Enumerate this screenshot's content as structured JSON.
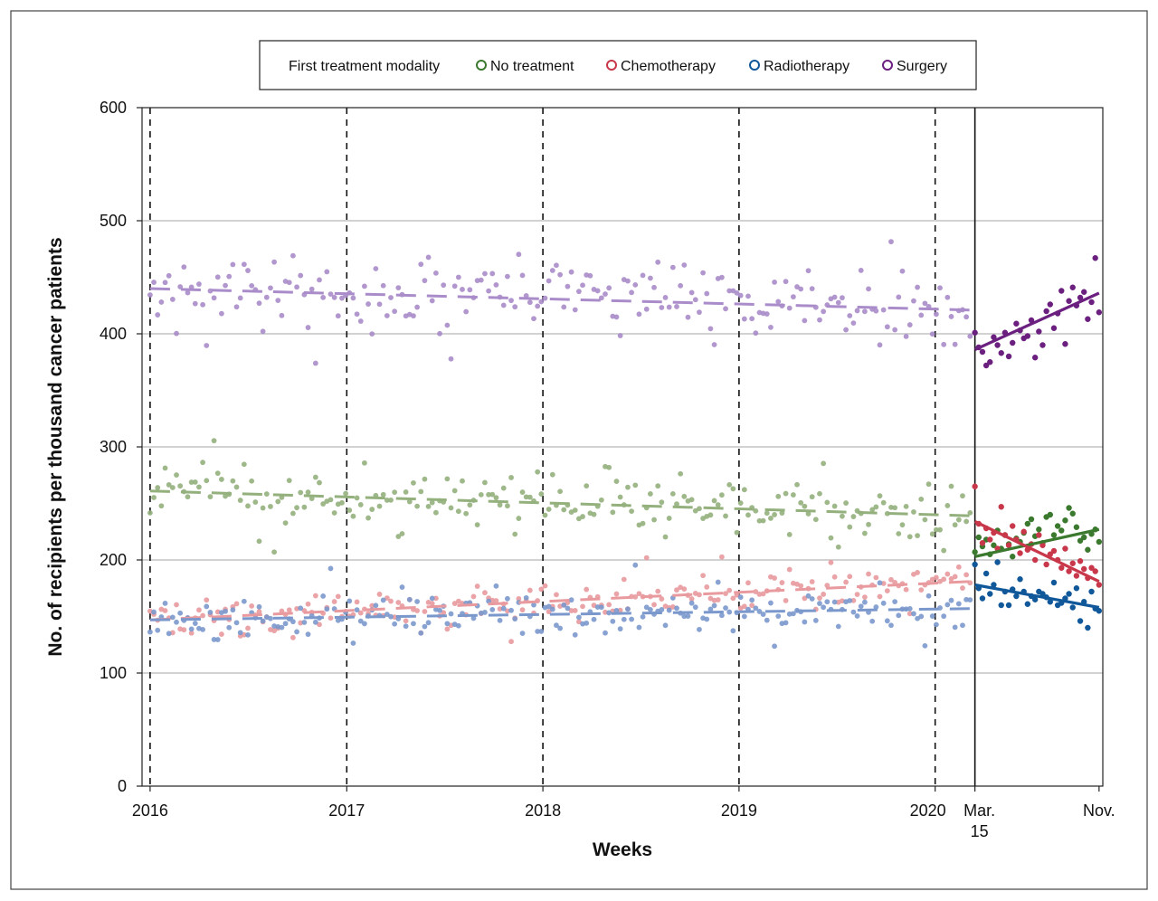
{
  "chart_data": {
    "type": "scatter",
    "title": "",
    "xlabel": "Weeks",
    "ylabel": "No. of recipients per thousand cancer patients",
    "ylim": [
      0,
      600
    ],
    "y_ticks": [
      "0",
      "100",
      "200",
      "300",
      "400",
      "500",
      "600"
    ],
    "x_tick_labels": [
      {
        "label": "2016",
        "x": "2016-01-01"
      },
      {
        "label": "2017",
        "x": "2017-01-01"
      },
      {
        "label": "2018",
        "x": "2018-01-01"
      },
      {
        "label": "2019",
        "x": "2019-01-01"
      },
      {
        "label": "2020",
        "x": "2020-01-01"
      },
      {
        "label": "Mar.",
        "label2": "15",
        "x": "2020-03-15"
      },
      {
        "label": "Nov.",
        "x": "2020-11-01"
      }
    ],
    "xlim": [
      "2015-12-17",
      "2020-11-08"
    ],
    "grid": "horizontal",
    "period_break": "2020-03-15",
    "year_markers": [
      "2016-01-01",
      "2017-01-01",
      "2018-01-01",
      "2019-01-01",
      "2020-01-01"
    ],
    "legend": {
      "position": "top-center",
      "title": "First treatment modality",
      "entries": [
        "No treatment",
        "Chemotherapy",
        "Radiotherapy",
        "Surgery"
      ]
    },
    "series": [
      {
        "name": "No treatment",
        "color": "#3b7a2e",
        "pre_color": "#93b07d",
        "pre_trend": {
          "start": [
            "2016-01-01",
            261
          ],
          "end": [
            "2020-03-15",
            239
          ]
        },
        "post_trend": {
          "start": [
            "2020-03-15",
            203
          ],
          "end": [
            "2020-11-01",
            227
          ]
        },
        "pre_center": [
          261,
          239
        ],
        "pre_spread": 13,
        "post_points": [
          207,
          220,
          212,
          218,
          205,
          213,
          226,
          210,
          222,
          214,
          203,
          219,
          216,
          224,
          232,
          236,
          221,
          227,
          215,
          238,
          240,
          222,
          230,
          226,
          235,
          246,
          241,
          229,
          217,
          220,
          209,
          223,
          227,
          216
        ]
      },
      {
        "name": "Chemotherapy",
        "color": "#c8374a",
        "pre_color": "#e89a9e",
        "pre_trend": {
          "start": [
            "2016-01-01",
            147
          ],
          "end": [
            "2020-03-15",
            181
          ]
        },
        "post_trend": {
          "start": [
            "2020-03-15",
            234
          ],
          "end": [
            "2020-11-01",
            181
          ]
        },
        "pre_center": [
          147,
          181
        ],
        "pre_spread": 9,
        "post_points": [
          265,
          232,
          215,
          228,
          218,
          224,
          210,
          247,
          222,
          213,
          230,
          218,
          206,
          225,
          209,
          214,
          200,
          222,
          213,
          196,
          205,
          208,
          200,
          193,
          210,
          190,
          197,
          186,
          199,
          192,
          184,
          193,
          190,
          178
        ]
      },
      {
        "name": "Radiotherapy",
        "color": "#10589a",
        "pre_color": "#7b98cc",
        "pre_trend": {
          "start": [
            "2016-01-01",
            147
          ],
          "end": [
            "2020-03-15",
            157
          ]
        },
        "post_trend": {
          "start": [
            "2020-03-15",
            178
          ],
          "end": [
            "2020-11-01",
            158
          ]
        },
        "pre_center": [
          147,
          157
        ],
        "pre_spread": 9,
        "post_points": [
          196,
          175,
          166,
          188,
          170,
          178,
          198,
          160,
          172,
          160,
          174,
          168,
          183,
          172,
          161,
          168,
          165,
          172,
          170,
          167,
          163,
          180,
          160,
          162,
          166,
          170,
          158,
          175,
          146,
          163,
          140,
          172,
          157,
          155
        ]
      },
      {
        "name": "Surgery",
        "color": "#6b1f7f",
        "pre_color": "#a98cc9",
        "pre_trend": {
          "start": [
            "2016-01-01",
            440
          ],
          "end": [
            "2020-03-15",
            421
          ]
        },
        "post_trend": {
          "start": [
            "2020-03-15",
            386
          ],
          "end": [
            "2020-11-01",
            436
          ]
        },
        "pre_center": [
          440,
          421
        ],
        "pre_spread": 16,
        "post_points": [
          401,
          388,
          384,
          372,
          375,
          397,
          390,
          383,
          401,
          380,
          392,
          409,
          403,
          396,
          398,
          412,
          379,
          402,
          390,
          420,
          426,
          405,
          418,
          438,
          391,
          429,
          441,
          425,
          432,
          437,
          413,
          428,
          467,
          419
        ]
      }
    ]
  }
}
